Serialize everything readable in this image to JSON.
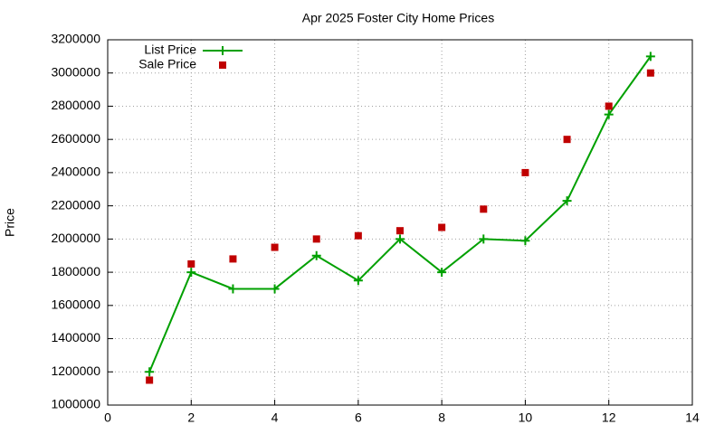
{
  "chart_data": {
    "type": "line",
    "title": "Apr 2025 Foster City Home Prices",
    "ylabel": "Price",
    "x": [
      1,
      2,
      3,
      4,
      5,
      6,
      7,
      8,
      9,
      10,
      11,
      12,
      13
    ],
    "series": [
      {
        "name": "List Price",
        "color": "#00a000",
        "marker": "plus",
        "line": true,
        "values": [
          1200000,
          1800000,
          1700000,
          1700000,
          1900000,
          1750000,
          2000000,
          1800000,
          2000000,
          1990000,
          2230000,
          2750000,
          3100000
        ]
      },
      {
        "name": "Sale Price",
        "color": "#c00000",
        "marker": "square",
        "line": false,
        "values": [
          1150000,
          1850000,
          1880000,
          1950000,
          2000000,
          2020000,
          2050000,
          2070000,
          2180000,
          2400000,
          2600000,
          2800000,
          3000000
        ]
      }
    ],
    "xlim": [
      0,
      14
    ],
    "xticks": [
      0,
      2,
      4,
      6,
      8,
      10,
      12,
      14
    ],
    "ylim": [
      1000000,
      3200000
    ],
    "yticks": [
      1000000,
      1200000,
      1400000,
      1600000,
      1800000,
      2000000,
      2200000,
      2400000,
      2600000,
      2800000,
      3000000,
      3200000
    ],
    "grid": true,
    "legend": "top-left"
  }
}
